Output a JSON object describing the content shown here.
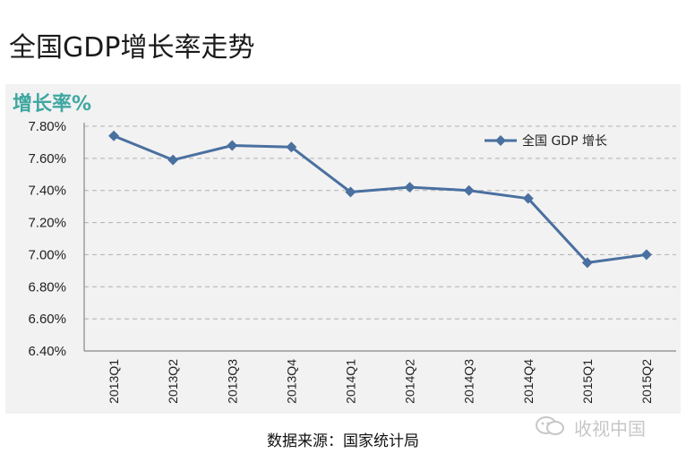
{
  "page": {
    "title": "全国GDP增长率走势",
    "source": "数据来源：国家统计局",
    "watermark": "收视中国"
  },
  "chart_data": {
    "type": "line",
    "title": "",
    "ylabel": "增长率%",
    "xlabel": "",
    "categories": [
      "2013Q1",
      "2013Q2",
      "2013Q3",
      "2013Q4",
      "2014Q1",
      "2014Q2",
      "2014Q3",
      "2014Q4",
      "2015Q1",
      "2015Q2"
    ],
    "series": [
      {
        "name": "全国 GDP 增长",
        "values": [
          7.74,
          7.59,
          7.68,
          7.67,
          7.39,
          7.42,
          7.4,
          7.35,
          6.95,
          7.0
        ]
      }
    ],
    "ylim": [
      6.4,
      7.8
    ],
    "yticks": [
      "7.80%",
      "7.60%",
      "7.40%",
      "7.20%",
      "7.00%",
      "6.80%",
      "6.60%",
      "6.40%"
    ],
    "grid": true,
    "legend_position": "top-right",
    "colors": {
      "series": "#4a70a0",
      "grid": "#b0b0b0",
      "panel": "#f2f2f2",
      "ylabel": "#3fa7a1"
    }
  }
}
